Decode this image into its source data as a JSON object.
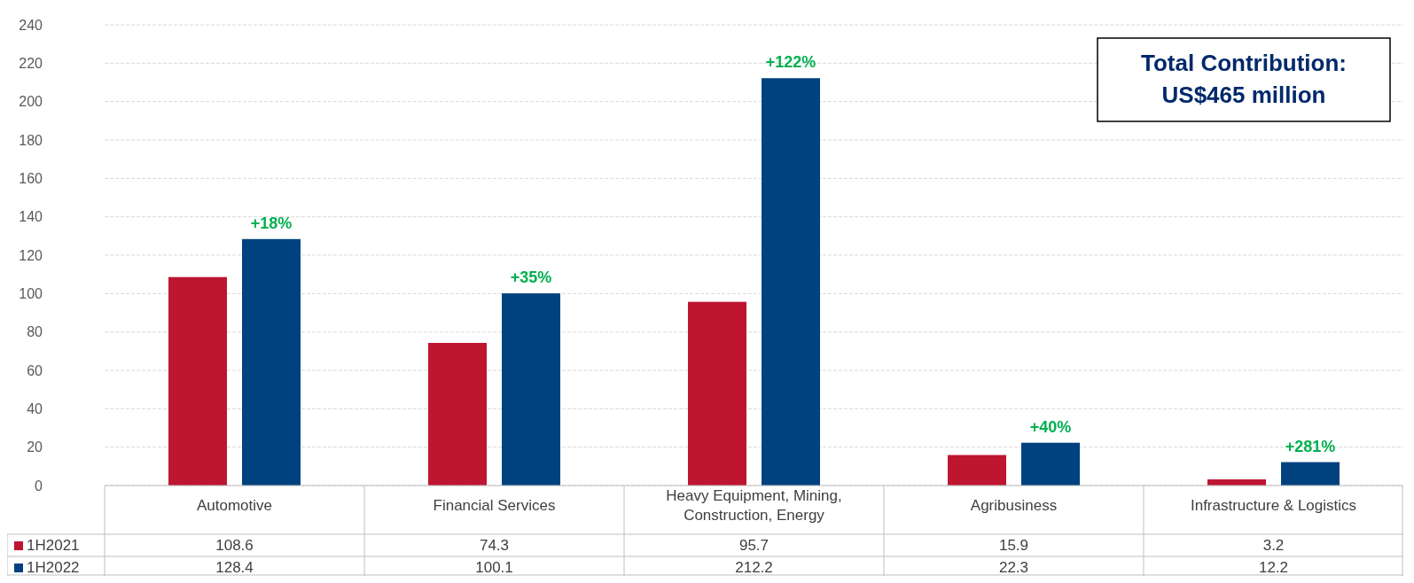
{
  "chart_data": {
    "type": "bar",
    "categories": [
      "Automotive",
      "Financial Services",
      "Heavy Equipment, Mining, Construction, Energy",
      "Agribusiness",
      "Infrastructure & Logistics"
    ],
    "series": [
      {
        "name": "1H2021",
        "color": "#be1531",
        "values": [
          108.6,
          74.3,
          95.7,
          15.9,
          3.2
        ]
      },
      {
        "name": "1H2022",
        "color": "#00427f",
        "values": [
          128.4,
          100.1,
          212.2,
          22.3,
          12.2
        ]
      }
    ],
    "ylim": [
      0,
      240
    ],
    "yticks": [
      0,
      20,
      40,
      60,
      80,
      100,
      120,
      140,
      160,
      180,
      200,
      220,
      240
    ],
    "grid": "y",
    "legend": "bottom",
    "data_labels": true,
    "annotations": [
      "+18%",
      "+35%",
      "+122%",
      "+40%",
      "+281%",
      "Total Contribution: US$465 million"
    ]
  }
}
